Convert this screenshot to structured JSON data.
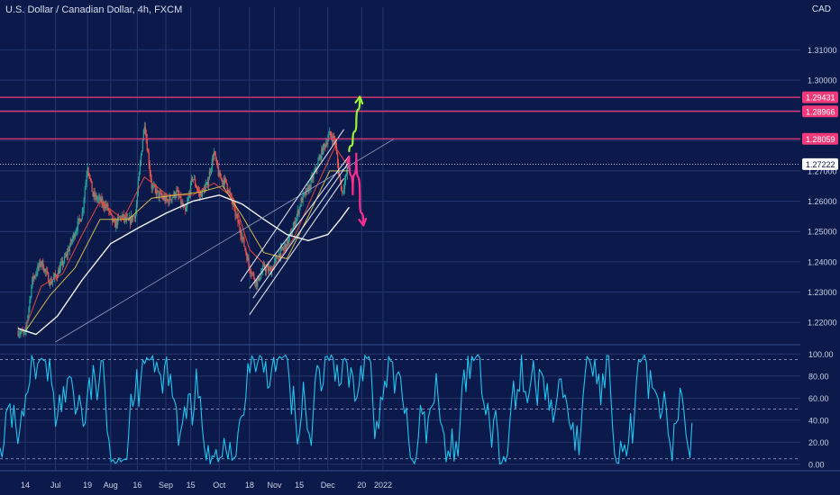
{
  "header": {
    "title": "U.S. Dollar / Canadian Dollar, 4h, FXCM",
    "currency": "CAD"
  },
  "colors": {
    "background": "#0b1a4a",
    "grid": "#24376e",
    "up_candle": "#26a69a",
    "down_candle": "#ef5350",
    "resistance": "#f23a7a",
    "projection_up": "#9cf23a",
    "projection_down": "#ff2d8c",
    "oscillator": "#22c4f0",
    "ma_slow": "#f4f4f4",
    "ma_mid": "#d4b84a",
    "ma_fast": "#e0483b"
  },
  "chart_data": [
    {
      "type": "candlestick",
      "title": "U.S. Dollar / Canadian Dollar, 4h, FXCM",
      "y_axis_side": "right",
      "ylim": [
        1.2135,
        1.3205
      ],
      "y_ticks": [
        "1.31000",
        "1.30000",
        "1.29000",
        "1.28000",
        "1.27000",
        "1.26000",
        "1.25000",
        "1.24000",
        "1.23000",
        "1.22000"
      ],
      "x_ticks": [
        "14",
        "Jul",
        "19",
        "Aug",
        "16",
        "Sep",
        "15",
        "Oct",
        "18",
        "Nov",
        "15",
        "Dec",
        "20",
        "2022"
      ],
      "last_price": {
        "value": 1.27222,
        "label": "1.27222"
      },
      "price_path": [
        {
          "d": "Jun 10",
          "v": 1.217
        },
        {
          "d": "Jun 14",
          "v": 1.216
        },
        {
          "d": "Jun 18",
          "v": 1.234
        },
        {
          "d": "Jun 23",
          "v": 1.24
        },
        {
          "d": "Jun 28",
          "v": 1.233
        },
        {
          "d": "Jul 2",
          "v": 1.236
        },
        {
          "d": "Jul 7",
          "v": 1.242
        },
        {
          "d": "Jul 12",
          "v": 1.25
        },
        {
          "d": "Jul 16",
          "v": 1.256
        },
        {
          "d": "Jul 19",
          "v": 1.272
        },
        {
          "d": "Jul 22",
          "v": 1.262
        },
        {
          "d": "Jul 26",
          "v": 1.26
        },
        {
          "d": "Jul 30",
          "v": 1.258
        },
        {
          "d": "Aug 3",
          "v": 1.252
        },
        {
          "d": "Aug 7",
          "v": 1.255
        },
        {
          "d": "Aug 11",
          "v": 1.253
        },
        {
          "d": "Aug 15",
          "v": 1.256
        },
        {
          "d": "Aug 18",
          "v": 1.275
        },
        {
          "d": "Aug 20",
          "v": 1.286
        },
        {
          "d": "Aug 24",
          "v": 1.265
        },
        {
          "d": "Aug 28",
          "v": 1.262
        },
        {
          "d": "Sep 2",
          "v": 1.26
        },
        {
          "d": "Sep 7",
          "v": 1.263
        },
        {
          "d": "Sep 12",
          "v": 1.256
        },
        {
          "d": "Sep 16",
          "v": 1.268
        },
        {
          "d": "Sep 20",
          "v": 1.262
        },
        {
          "d": "Sep 24",
          "v": 1.265
        },
        {
          "d": "Sep 28",
          "v": 1.276
        },
        {
          "d": "Oct 1",
          "v": 1.268
        },
        {
          "d": "Oct 5",
          "v": 1.266
        },
        {
          "d": "Oct 9",
          "v": 1.258
        },
        {
          "d": "Oct 14",
          "v": 1.248
        },
        {
          "d": "Oct 18",
          "v": 1.238
        },
        {
          "d": "Oct 22",
          "v": 1.233
        },
        {
          "d": "Oct 26",
          "v": 1.238
        },
        {
          "d": "Oct 30",
          "v": 1.237
        },
        {
          "d": "Nov 3",
          "v": 1.242
        },
        {
          "d": "Nov 8",
          "v": 1.246
        },
        {
          "d": "Nov 12",
          "v": 1.252
        },
        {
          "d": "Nov 16",
          "v": 1.26
        },
        {
          "d": "Nov 20",
          "v": 1.264
        },
        {
          "d": "Nov 24",
          "v": 1.27
        },
        {
          "d": "Nov 28",
          "v": 1.277
        },
        {
          "d": "Dec 2",
          "v": 1.282
        },
        {
          "d": "Dec 5",
          "v": 1.28
        },
        {
          "d": "Dec 7",
          "v": 1.27
        },
        {
          "d": "Dec 9",
          "v": 1.263
        },
        {
          "d": "Dec 12",
          "v": 1.27
        },
        {
          "d": "Dec 13",
          "v": 1.272
        }
      ],
      "moving_averages": [
        {
          "key": "fast",
          "points": [
            {
              "d": "Jun 14",
              "v": 1.218
            },
            {
              "d": "Jun 23",
              "v": 1.232
            },
            {
              "d": "Jul 5",
              "v": 1.236
            },
            {
              "d": "Jul 16",
              "v": 1.249
            },
            {
              "d": "Jul 26",
              "v": 1.26
            },
            {
              "d": "Aug 8",
              "v": 1.254
            },
            {
              "d": "Aug 20",
              "v": 1.268
            },
            {
              "d": "Sep 2",
              "v": 1.262
            },
            {
              "d": "Sep 16",
              "v": 1.262
            },
            {
              "d": "Sep 28",
              "v": 1.266
            },
            {
              "d": "Oct 9",
              "v": 1.261
            },
            {
              "d": "Oct 18",
              "v": 1.244
            },
            {
              "d": "Oct 30",
              "v": 1.237
            },
            {
              "d": "Nov 12",
              "v": 1.248
            },
            {
              "d": "Nov 24",
              "v": 1.264
            },
            {
              "d": "Dec 5",
              "v": 1.278
            },
            {
              "d": "Dec 13",
              "v": 1.271
            }
          ]
        },
        {
          "key": "mid",
          "points": [
            {
              "d": "Jun 14",
              "v": 1.217
            },
            {
              "d": "Jun 28",
              "v": 1.229
            },
            {
              "d": "Jul 12",
              "v": 1.238
            },
            {
              "d": "Jul 26",
              "v": 1.254
            },
            {
              "d": "Aug 11",
              "v": 1.254
            },
            {
              "d": "Aug 24",
              "v": 1.261
            },
            {
              "d": "Sep 7",
              "v": 1.262
            },
            {
              "d": "Sep 20",
              "v": 1.263
            },
            {
              "d": "Oct 3",
              "v": 1.265
            },
            {
              "d": "Oct 14",
              "v": 1.255
            },
            {
              "d": "Oct 26",
              "v": 1.243
            },
            {
              "d": "Nov 8",
              "v": 1.241
            },
            {
              "d": "Nov 20",
              "v": 1.255
            },
            {
              "d": "Dec 2",
              "v": 1.27
            },
            {
              "d": "Dec 13",
              "v": 1.27
            }
          ]
        },
        {
          "key": "slow",
          "points": [
            {
              "d": "Jun 10",
              "v": 1.218
            },
            {
              "d": "Jun 20",
              "v": 1.216
            },
            {
              "d": "Jul 2",
              "v": 1.222
            },
            {
              "d": "Jul 16",
              "v": 1.234
            },
            {
              "d": "Aug 1",
              "v": 1.246
            },
            {
              "d": "Aug 16",
              "v": 1.251
            },
            {
              "d": "Sep 1",
              "v": 1.256
            },
            {
              "d": "Sep 16",
              "v": 1.26
            },
            {
              "d": "Oct 1",
              "v": 1.262
            },
            {
              "d": "Oct 14",
              "v": 1.259
            },
            {
              "d": "Oct 26",
              "v": 1.254
            },
            {
              "d": "Nov 8",
              "v": 1.249
            },
            {
              "d": "Nov 20",
              "v": 1.247
            },
            {
              "d": "Dec 1",
              "v": 1.249
            },
            {
              "d": "Dec 8",
              "v": 1.254
            },
            {
              "d": "Dec 13",
              "v": 1.258
            }
          ]
        }
      ],
      "trendlines": [
        {
          "kind": "long",
          "from": {
            "d": "Jul 1",
            "v": 1.2135
          },
          "to": {
            "d": "Jan 7",
            "v": 1.2805
          }
        },
        {
          "kind": "channel",
          "from": {
            "d": "Oct 13",
            "v": 1.2335
          },
          "to": {
            "d": "Dec 10",
            "v": 1.2837
          }
        },
        {
          "kind": "channel",
          "from": {
            "d": "Oct 18",
            "v": 1.2312
          },
          "to": {
            "d": "Dec 13",
            "v": 1.275
          }
        },
        {
          "kind": "channel",
          "from": {
            "d": "Oct 20",
            "v": 1.228
          },
          "to": {
            "d": "Dec 13",
            "v": 1.273
          }
        },
        {
          "kind": "channel",
          "from": {
            "d": "Oct 18",
            "v": 1.2225
          },
          "to": {
            "d": "Dec 10",
            "v": 1.2675
          }
        }
      ],
      "resistance_levels": [
        {
          "value": 1.29431,
          "label": "1.29431"
        },
        {
          "value": 1.28966,
          "label": "1.28966"
        },
        {
          "value": 1.28059,
          "label": "1.28059"
        }
      ],
      "projections": [
        {
          "direction": "up",
          "points": [
            {
              "d": "Dec 13",
              "v": 1.2765
            },
            {
              "d": "Dec 15",
              "v": 1.28
            },
            {
              "d": "Dec 17",
              "v": 1.286
            },
            {
              "d": "Dec 19",
              "v": 1.2945
            }
          ]
        },
        {
          "direction": "down",
          "points": [
            {
              "d": "Dec 12",
              "v": 1.273
            },
            {
              "d": "Dec 13",
              "v": 1.275
            },
            {
              "d": "Dec 15",
              "v": 1.262
            },
            {
              "d": "Dec 17",
              "v": 1.276
            },
            {
              "d": "Dec 19",
              "v": 1.26
            },
            {
              "d": "Dec 21",
              "v": 1.252
            }
          ]
        }
      ]
    },
    {
      "type": "line",
      "y_axis_side": "right",
      "ylim": [
        -5,
        106
      ],
      "y_ticks": [
        "100.00",
        "80.00",
        "60.00",
        "40.00",
        "20.00",
        "0.00"
      ],
      "dashed_levels": [
        95,
        50,
        5
      ]
    }
  ]
}
